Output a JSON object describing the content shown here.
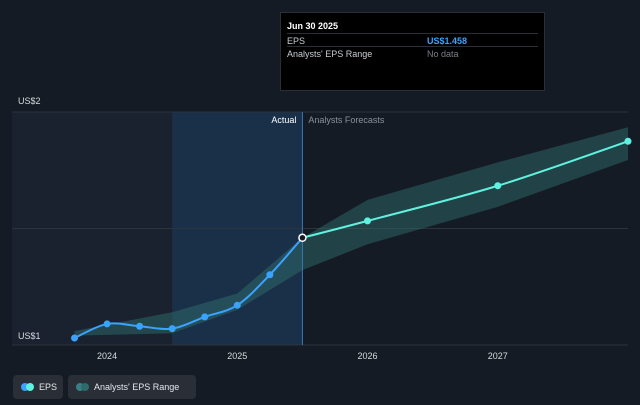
{
  "colors": {
    "background": "#151b24",
    "eps_line": "#3aa3ff",
    "forecast_line": "#5ff2e0",
    "range_band": "#2e6b6a",
    "actual_shade": "#1a3550",
    "past_shade": "#1a2230"
  },
  "tooltip": {
    "date": "Jun 30 2025",
    "rows": [
      {
        "label": "EPS",
        "value": "US$1.458"
      },
      {
        "label": "Analysts' EPS Range",
        "value": "No data"
      }
    ]
  },
  "labels": {
    "actual": "Actual",
    "forecasts": "Analysts Forecasts"
  },
  "legend": {
    "eps": "EPS",
    "range": "Analysts' EPS Range"
  },
  "chart_data": {
    "type": "line",
    "y_ticks": [
      {
        "value": 1,
        "label": "US$1"
      },
      {
        "value": 2,
        "label": "US$2"
      }
    ],
    "x_ticks": [
      {
        "value": 2024,
        "label": "2024"
      },
      {
        "value": 2025,
        "label": "2025"
      },
      {
        "value": 2026,
        "label": "2026"
      },
      {
        "value": 2027,
        "label": "2027"
      }
    ],
    "xlim": [
      2023.27,
      2028.0
    ],
    "ylim": [
      1.0,
      1.995
    ],
    "split_x": 2025.5,
    "shade_start_x": 2024.5,
    "series": [
      {
        "name": "EPS",
        "role": "actual",
        "x": [
          2023.75,
          2024.0,
          2024.25,
          2024.5,
          2024.75,
          2025.0,
          2025.25,
          2025.5
        ],
        "y": [
          1.03,
          1.09,
          1.08,
          1.07,
          1.12,
          1.17,
          1.3,
          1.458
        ]
      },
      {
        "name": "",
        "role": "forecast",
        "x": [
          2025.5,
          2026.0,
          2027.0,
          2028.0
        ],
        "y": [
          1.458,
          1.53,
          1.68,
          1.87
        ]
      }
    ],
    "range_band": {
      "x": [
        2023.75,
        2024.5,
        2025.0,
        2025.5,
        2026.0,
        2027.0,
        2028.0
      ],
      "low": [
        1.04,
        1.05,
        1.15,
        1.32,
        1.43,
        1.59,
        1.79
      ],
      "high": [
        1.06,
        1.14,
        1.22,
        1.458,
        1.62,
        1.78,
        1.93
      ]
    }
  }
}
